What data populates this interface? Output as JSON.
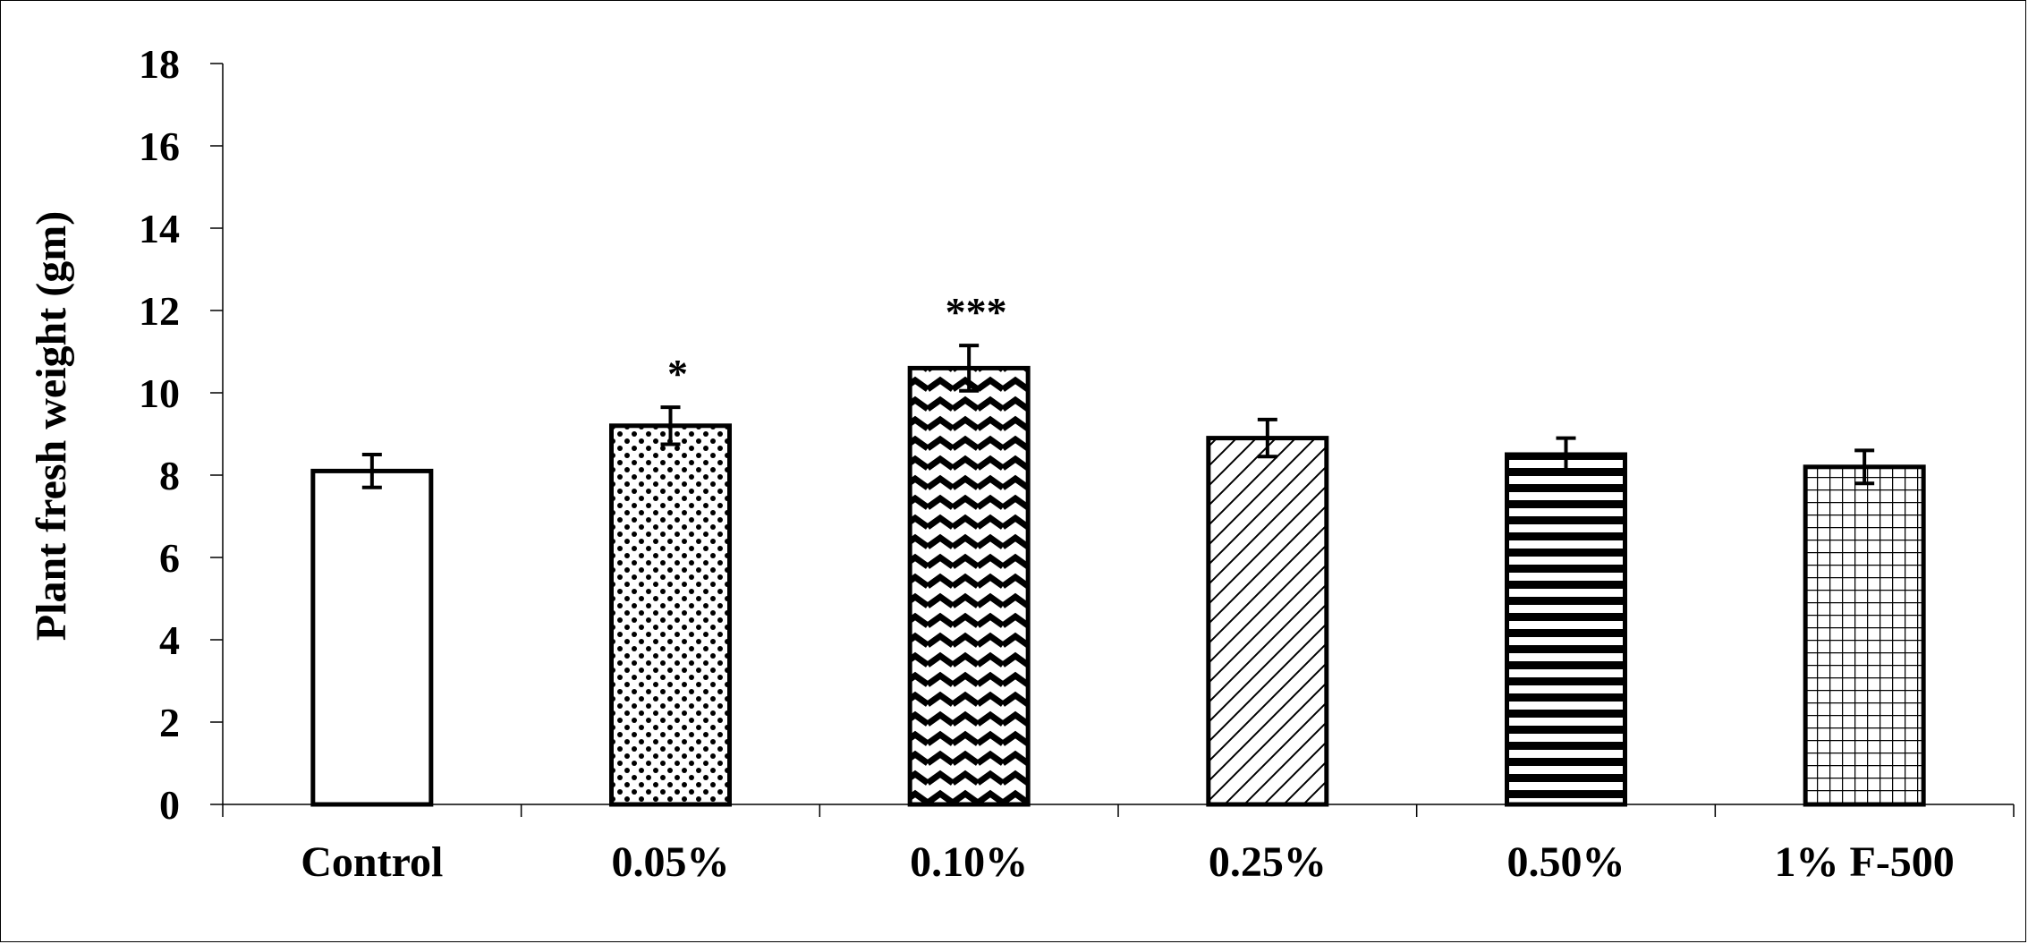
{
  "chart_data": {
    "type": "bar",
    "title": "",
    "xlabel": "",
    "ylabel": "Plant fresh weight (gm)",
    "ylim": [
      0,
      18
    ],
    "yticks": [
      0,
      2,
      4,
      6,
      8,
      10,
      12,
      14,
      16,
      18
    ],
    "grid": false,
    "categories": [
      "Control",
      "0.05%",
      "0.10%",
      "0.25%",
      "0.50%",
      "1% F-500"
    ],
    "values": [
      8.1,
      9.2,
      10.6,
      8.9,
      8.5,
      8.2
    ],
    "errors": [
      0.4,
      0.45,
      0.55,
      0.45,
      0.4,
      0.4
    ],
    "annotations": [
      "",
      "*",
      "***",
      "",
      "",
      ""
    ],
    "patterns": [
      "none",
      "dots",
      "zigzag",
      "diagonal",
      "horizontal",
      "grid"
    ],
    "bar_fill": "#ffffff",
    "bar_edge": "#000000"
  }
}
